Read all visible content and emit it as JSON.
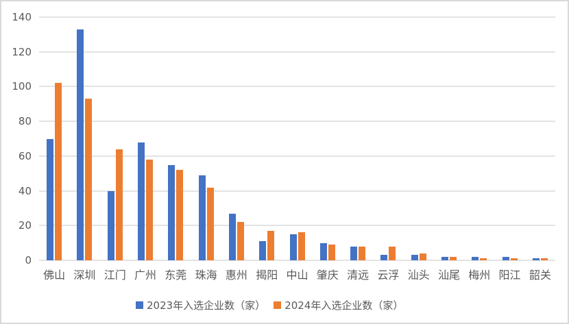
{
  "chart_data": {
    "type": "bar",
    "title": "",
    "xlabel": "",
    "ylabel": "",
    "ylim": [
      0,
      140
    ],
    "yticks": [
      0,
      20,
      40,
      60,
      80,
      100,
      120,
      140
    ],
    "grid": true,
    "legend_position": "bottom",
    "categories": [
      "佛山",
      "深圳",
      "江门",
      "广州",
      "东莞",
      "珠海",
      "惠州",
      "揭阳",
      "中山",
      "肇庆",
      "清远",
      "云浮",
      "汕头",
      "汕尾",
      "梅州",
      "阳江",
      "韶关"
    ],
    "series": [
      {
        "name": "2023年入选企业数（家）",
        "color": "#4472c4",
        "values": [
          70,
          133,
          40,
          68,
          55,
          49,
          27,
          11,
          15,
          10,
          8,
          3,
          3,
          2,
          2,
          2,
          1
        ]
      },
      {
        "name": "2024年入选企业数（家）",
        "color": "#ed7d31",
        "values": [
          102,
          93,
          64,
          58,
          52,
          42,
          22,
          17,
          16,
          9,
          8,
          8,
          4,
          2,
          1,
          1,
          1
        ]
      }
    ]
  }
}
